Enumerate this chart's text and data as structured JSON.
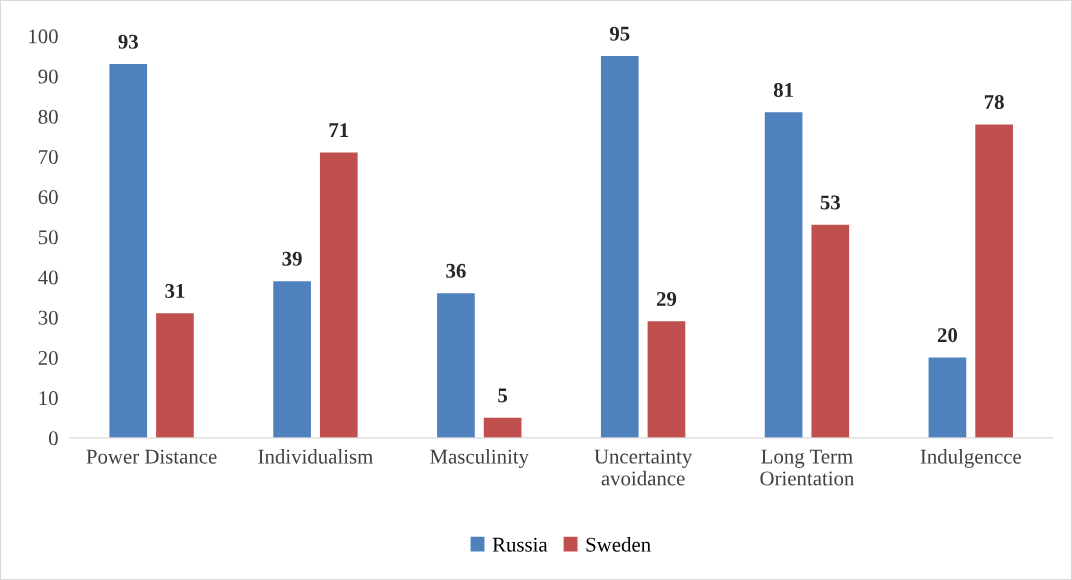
{
  "chart_data": {
    "type": "bar",
    "categories": [
      "Power Distance",
      "Individualism",
      "Masculinity",
      "Uncertainty\navoidance",
      "Long Term\nOrientation",
      "Indulgencce"
    ],
    "series": [
      {
        "name": "Russia",
        "color": "#4f81bd",
        "values": [
          93,
          39,
          36,
          95,
          81,
          20
        ]
      },
      {
        "name": "Sweden",
        "color": "#c0504d",
        "values": [
          31,
          71,
          5,
          29,
          53,
          78
        ]
      }
    ],
    "ylim": [
      0,
      100
    ],
    "yticks": [
      0,
      10,
      20,
      30,
      40,
      50,
      60,
      70,
      80,
      90,
      100
    ],
    "data_labels": true,
    "grid": false,
    "legend": "bottom"
  }
}
